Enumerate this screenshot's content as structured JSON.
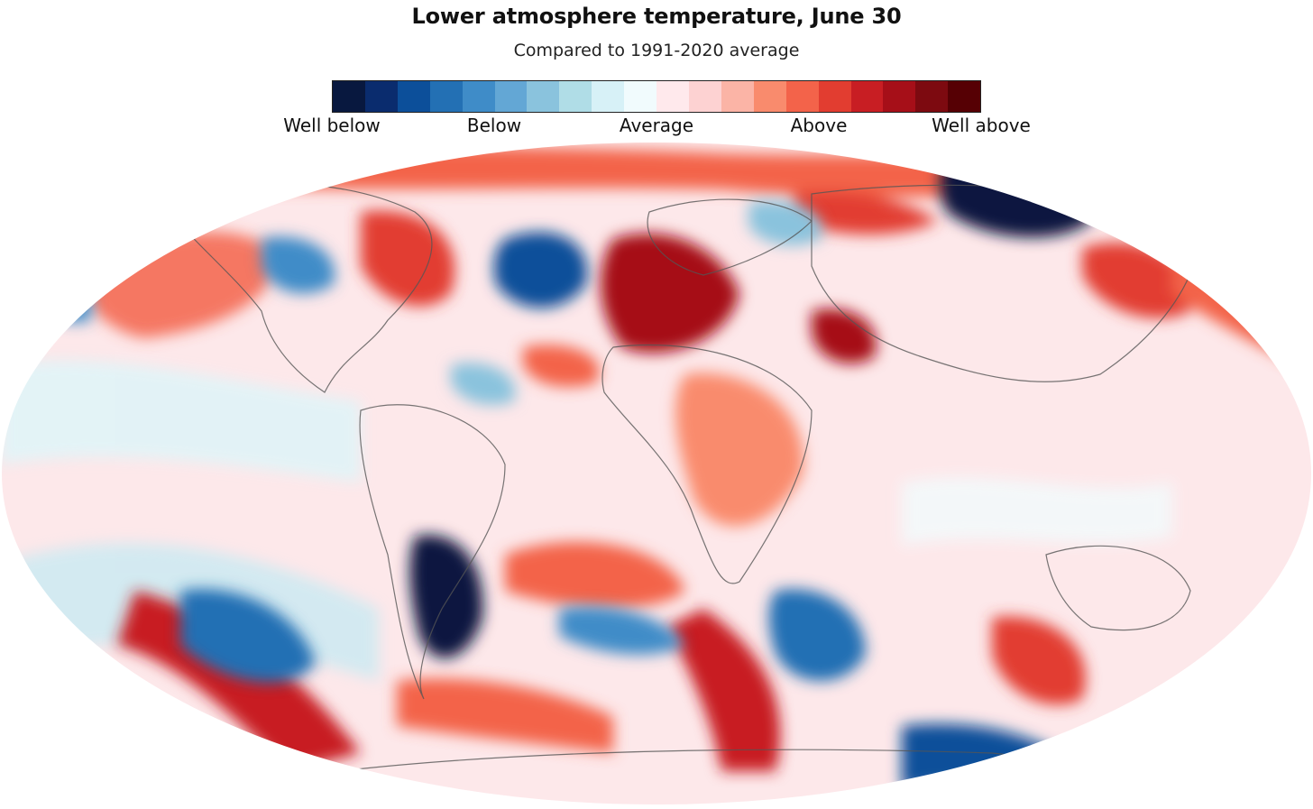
{
  "title": "Lower atmosphere temperature, June 30",
  "subtitle": "Compared to 1991-2020 average",
  "legend": {
    "colors": [
      "#08183f",
      "#0a2c6e",
      "#0c4f9a",
      "#2370b4",
      "#3f8cc8",
      "#63a7d5",
      "#8ac3dd",
      "#b0dde7",
      "#d7f1f7",
      "#f1fbfd",
      "#ffe9ec",
      "#fdd2d2",
      "#fbb4a6",
      "#f98b6d",
      "#f3634a",
      "#e23d30",
      "#c81e23",
      "#a60f18",
      "#7d0a10",
      "#560004"
    ],
    "labels": [
      "Well below",
      "Below",
      "Average",
      "Above",
      "Well above"
    ]
  },
  "map": {
    "background": "#fde8ea",
    "country_outline_color": "#555555",
    "projection": "Robinson-like",
    "anomalies": [
      {
        "name": "Northern Pacific warm band",
        "level": "above"
      },
      {
        "name": "North Atlantic cold pool",
        "level": "well below"
      },
      {
        "name": "Western Europe heat",
        "level": "well above"
      },
      {
        "name": "Iran heat",
        "level": "well above"
      },
      {
        "name": "Siberia cold",
        "level": "well below"
      },
      {
        "name": "South America cold",
        "level": "well below"
      },
      {
        "name": "Southern Ocean cold eddy",
        "level": "below"
      }
    ]
  }
}
